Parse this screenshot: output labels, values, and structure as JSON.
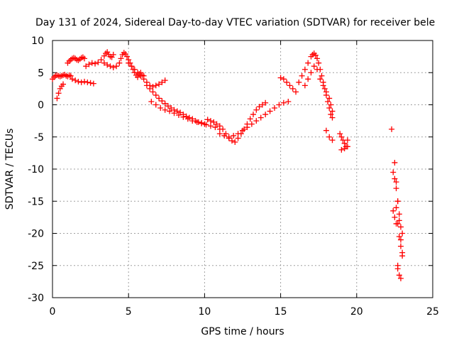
{
  "chart_data": {
    "type": "scatter",
    "title": "Day 131 of 2024, Sidereal Day-to-day VTEC variation (SDTVAR) for receiver bele",
    "xlabel": "GPS time / hours",
    "ylabel": "SDTVAR / TECUs",
    "xlim": [
      0,
      25
    ],
    "ylim": [
      -30,
      10
    ],
    "xticks": [
      0,
      5,
      10,
      15,
      20,
      25
    ],
    "yticks": [
      10,
      5,
      0,
      -5,
      -10,
      -15,
      -20,
      -25,
      -30
    ],
    "grid": true,
    "marker": "+",
    "color": "#ff0000",
    "series": [
      {
        "name": "SDTVAR",
        "x": [
          0.0,
          0.1,
          0.2,
          0.3,
          0.4,
          0.5,
          0.6,
          0.7,
          0.8,
          0.9,
          1.0,
          1.1,
          1.2,
          0.3,
          0.4,
          0.5,
          0.6,
          0.7,
          1.0,
          1.1,
          1.2,
          1.3,
          1.4,
          1.5,
          1.6,
          1.7,
          1.8,
          1.9,
          2.0,
          2.1,
          1.3,
          1.5,
          1.7,
          1.9,
          2.1,
          2.3,
          2.5,
          2.7,
          2.2,
          2.4,
          2.6,
          2.8,
          3.0,
          3.2,
          3.4,
          3.5,
          3.6,
          3.7,
          3.8,
          3.9,
          4.0,
          3.4,
          3.6,
          3.8,
          4.0,
          4.2,
          4.4,
          4.5,
          4.6,
          4.7,
          4.8,
          4.9,
          5.0,
          5.1,
          5.2,
          5.3,
          5.4,
          5.5,
          5.6,
          5.7,
          5.8,
          5.9,
          6.0,
          5.0,
          5.2,
          5.4,
          5.6,
          5.8,
          6.0,
          6.2,
          6.4,
          6.6,
          6.8,
          7.0,
          7.2,
          7.4,
          6.2,
          6.4,
          6.6,
          6.8,
          7.0,
          7.2,
          7.4,
          7.6,
          7.8,
          8.0,
          8.2,
          8.4,
          8.6,
          8.8,
          9.0,
          9.2,
          9.4,
          9.6,
          9.8,
          10.0,
          6.5,
          6.8,
          7.1,
          7.4,
          7.7,
          8.0,
          8.3,
          8.6,
          8.9,
          9.2,
          9.5,
          9.8,
          10.1,
          10.4,
          10.7,
          11.0,
          10.2,
          10.4,
          10.6,
          10.8,
          11.0,
          11.2,
          11.4,
          11.6,
          11.8,
          12.0,
          12.2,
          12.4,
          12.6,
          12.8,
          13.0,
          13.2,
          13.4,
          13.6,
          13.8,
          14.0,
          11.0,
          11.3,
          11.6,
          11.9,
          12.2,
          12.5,
          12.8,
          13.1,
          13.4,
          13.7,
          14.0,
          14.3,
          14.6,
          14.9,
          15.2,
          15.5,
          15.0,
          15.2,
          15.4,
          15.6,
          15.8,
          16.0,
          16.2,
          16.4,
          16.6,
          16.8,
          17.0,
          17.1,
          17.2,
          17.3,
          17.4,
          17.5,
          17.6,
          17.7,
          17.8,
          17.9,
          18.0,
          18.1,
          18.2,
          18.3,
          18.4,
          16.6,
          16.8,
          17.0,
          17.2,
          17.4,
          17.6,
          17.8,
          18.0,
          18.2,
          18.3,
          18.4,
          18.0,
          18.2,
          18.4,
          18.9,
          19.0,
          19.1,
          19.2,
          19.3,
          19.4,
          19.0,
          19.2,
          19.4,
          22.4,
          22.5,
          22.6,
          22.7,
          22.8,
          22.9,
          23.0,
          22.5,
          22.6,
          22.7,
          22.8,
          22.9,
          23.0,
          22.6,
          22.7,
          22.8,
          22.9,
          23.0,
          22.7,
          22.8,
          22.9,
          22.3,
          22.4,
          22.5,
          22.6,
          22.7
        ],
        "y": [
          4.0,
          4.3,
          4.5,
          4.6,
          4.5,
          4.4,
          4.5,
          4.6,
          4.7,
          4.5,
          4.4,
          4.6,
          4.5,
          1.0,
          1.8,
          2.5,
          2.9,
          3.2,
          6.5,
          6.8,
          7.0,
          7.2,
          7.3,
          7.2,
          7.0,
          6.9,
          7.1,
          7.3,
          7.4,
          7.2,
          4.0,
          3.8,
          3.6,
          3.5,
          3.6,
          3.5,
          3.4,
          3.3,
          6.0,
          6.3,
          6.5,
          6.4,
          6.6,
          7.0,
          7.6,
          8.0,
          8.2,
          7.8,
          7.5,
          7.4,
          7.8,
          6.5,
          6.2,
          6.0,
          5.8,
          6.0,
          6.5,
          7.2,
          7.8,
          8.1,
          7.9,
          7.5,
          7.0,
          6.5,
          6.0,
          5.5,
          5.0,
          4.6,
          4.3,
          4.8,
          5.0,
          4.6,
          4.5,
          6.5,
          6.0,
          5.5,
          5.0,
          4.5,
          4.0,
          3.5,
          3.0,
          2.8,
          3.0,
          3.2,
          3.5,
          3.8,
          3.0,
          2.5,
          2.0,
          1.5,
          1.0,
          0.6,
          0.2,
          -0.2,
          -0.5,
          -0.8,
          -1.0,
          -1.2,
          -1.5,
          -1.8,
          -2.0,
          -2.2,
          -2.5,
          -2.7,
          -2.8,
          -3.0,
          0.5,
          0.0,
          -0.5,
          -0.8,
          -1.0,
          -1.3,
          -1.6,
          -1.9,
          -2.2,
          -2.5,
          -2.7,
          -2.9,
          -3.1,
          -3.3,
          -3.5,
          -3.8,
          -2.3,
          -2.5,
          -2.7,
          -3.0,
          -3.3,
          -3.8,
          -4.5,
          -5.2,
          -5.6,
          -5.8,
          -5.2,
          -4.5,
          -3.8,
          -3.0,
          -2.2,
          -1.5,
          -0.8,
          -0.3,
          0.0,
          0.3,
          -4.5,
          -4.8,
          -5.0,
          -4.8,
          -4.5,
          -4.0,
          -3.5,
          -3.0,
          -2.5,
          -2.0,
          -1.5,
          -1.0,
          -0.5,
          0.0,
          0.3,
          0.5,
          4.2,
          4.0,
          3.5,
          3.0,
          2.5,
          2.0,
          3.5,
          4.5,
          5.5,
          6.5,
          7.5,
          7.8,
          8.0,
          7.7,
          7.2,
          6.5,
          5.5,
          4.5,
          3.5,
          2.5,
          1.5,
          0.5,
          -0.5,
          -1.5,
          -2.0,
          3.0,
          4.0,
          5.0,
          6.0,
          5.5,
          4.0,
          3.0,
          2.0,
          1.0,
          0.0,
          -1.0,
          -4.0,
          -5.0,
          -5.5,
          -4.5,
          -5.0,
          -5.5,
          -6.0,
          -6.5,
          -5.5,
          -7.0,
          -6.8,
          -6.5,
          -10.5,
          -11.5,
          -13.0,
          -15.0,
          -17.0,
          -19.0,
          -20.0,
          -9.0,
          -12.0,
          -15.0,
          -18.0,
          -21.0,
          -23.5,
          -16.0,
          -18.5,
          -20.5,
          -22.0,
          -23.0,
          -25.5,
          -26.5,
          -27.0,
          -3.8,
          -16.5,
          -17.5,
          -18.5,
          -25.0
        ]
      }
    ]
  }
}
